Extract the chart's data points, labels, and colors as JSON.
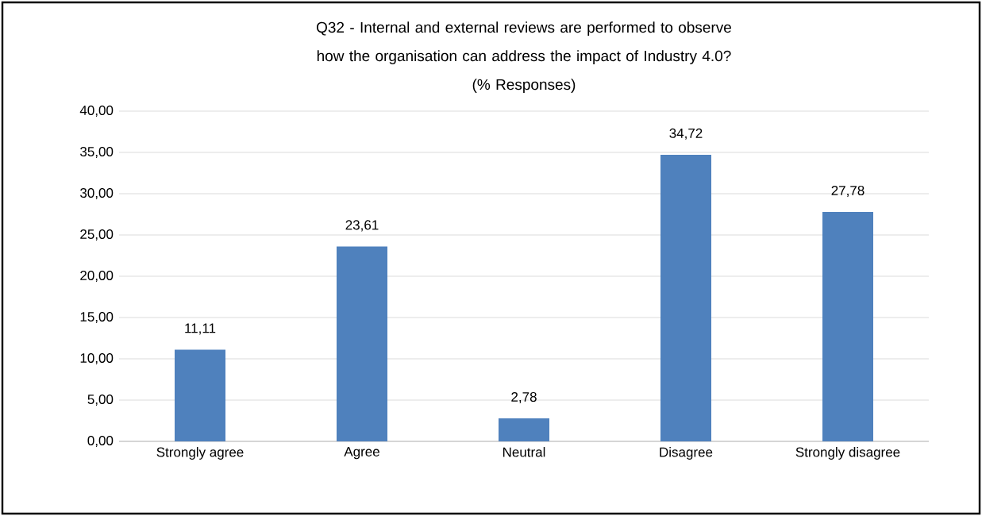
{
  "chart_data": {
    "type": "bar",
    "title": "Q32 - Internal and external reviews are performed to observe how the organisation can address the impact of Industry 4.0?",
    "subtitle": "(% Responses)",
    "categories": [
      "Strongly agree",
      "Agree",
      "Neutral",
      "Disagree",
      "Strongly disagree"
    ],
    "values": [
      11.11,
      23.61,
      2.78,
      34.72,
      27.78
    ],
    "value_labels": [
      "11,11",
      "23,61",
      "2,78",
      "34,72",
      "27,78"
    ],
    "color": "#4f81bd",
    "ylim": [
      0,
      40
    ],
    "yticks": [
      {
        "value": 0,
        "label": "0,00"
      },
      {
        "value": 5,
        "label": "5,00"
      },
      {
        "value": 10,
        "label": "10,00"
      },
      {
        "value": 15,
        "label": "15,00"
      },
      {
        "value": 20,
        "label": "20,00"
      },
      {
        "value": 25,
        "label": "25,00"
      },
      {
        "value": 30,
        "label": "30,00"
      },
      {
        "value": 35,
        "label": "35,00"
      },
      {
        "value": 40,
        "label": "40,00"
      }
    ],
    "grid": "y"
  }
}
